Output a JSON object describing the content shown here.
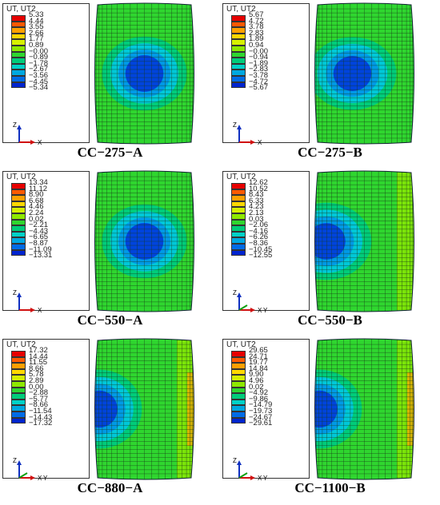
{
  "colors": [
    "#e60000",
    "#ff5a00",
    "#ffa000",
    "#ffd700",
    "#d6f000",
    "#8ee800",
    "#2fd62f",
    "#00cc7a",
    "#00d2c8",
    "#00a8e0",
    "#006be6",
    "#0024cf"
  ],
  "panels": [
    {
      "caption": "CC−275−A",
      "legend_title": "UT, UT2",
      "values": [
        "5.33",
        "4.44",
        "3.55",
        "2.66",
        "1.77",
        "0.89",
        "−0.00",
        "−0.89",
        "−1.78",
        "−2.67",
        "−3.56",
        "−4.45",
        "−5.34"
      ],
      "triad": {
        "vertical": "Z",
        "horizontal": "X",
        "depth": ""
      },
      "blob": "center"
    },
    {
      "caption": "CC−275−B",
      "legend_title": "UT, UT2",
      "values": [
        "5.67",
        "4.72",
        "3.78",
        "2.83",
        "1.89",
        "0.94",
        "−0.00",
        "−0.94",
        "−1.89",
        "−2.83",
        "−3.78",
        "−4.72",
        "−5.67"
      ],
      "triad": {
        "vertical": "Z",
        "horizontal": "X",
        "depth": ""
      },
      "blob": "center-left"
    },
    {
      "caption": "CC−550−A",
      "legend_title": "UT, UT2",
      "values": [
        "13.34",
        "11.12",
        "8.90",
        "6.68",
        "4.46",
        "2.24",
        "0.02",
        "−2.21",
        "−4.43",
        "−6.65",
        "−8.87",
        "−11.09",
        "−13.31"
      ],
      "triad": {
        "vertical": "Z",
        "horizontal": "X",
        "depth": ""
      },
      "blob": "center"
    },
    {
      "caption": "CC−550−B",
      "legend_title": "UT, UT2",
      "values": [
        "12.62",
        "10.52",
        "8.43",
        "6.33",
        "4.23",
        "2.13",
        "0.03",
        "−2.06",
        "−4.16",
        "−6.26",
        "−8.36",
        "−10.45",
        "−12.55"
      ],
      "triad": {
        "vertical": "Z",
        "horizontal": "X",
        "depth": "Y"
      },
      "blob": "left"
    },
    {
      "caption": "CC−880−A",
      "legend_title": "UT, UT2",
      "values": [
        "17.32",
        "14.44",
        "11.55",
        "8.66",
        "5.78",
        "2.89",
        "0.00",
        "−2.88",
        "−5.77",
        "−8.66",
        "−11.54",
        "−14.43",
        "−17.32"
      ],
      "triad": {
        "vertical": "Z",
        "horizontal": "X",
        "depth": "Y"
      },
      "blob": "edge-left"
    },
    {
      "caption": "CC−1100−B",
      "legend_title": "UT, UT2",
      "values": [
        "29.65",
        "24.71",
        "19.77",
        "14.84",
        "9.90",
        "4.96",
        "0.02",
        "−4.92",
        "−9.86",
        "−14.79",
        "−19.73",
        "−24.67",
        "−29.61"
      ],
      "triad": {
        "vertical": "Z",
        "horizontal": "X",
        "depth": "Y"
      },
      "blob": "edge-left"
    }
  ]
}
